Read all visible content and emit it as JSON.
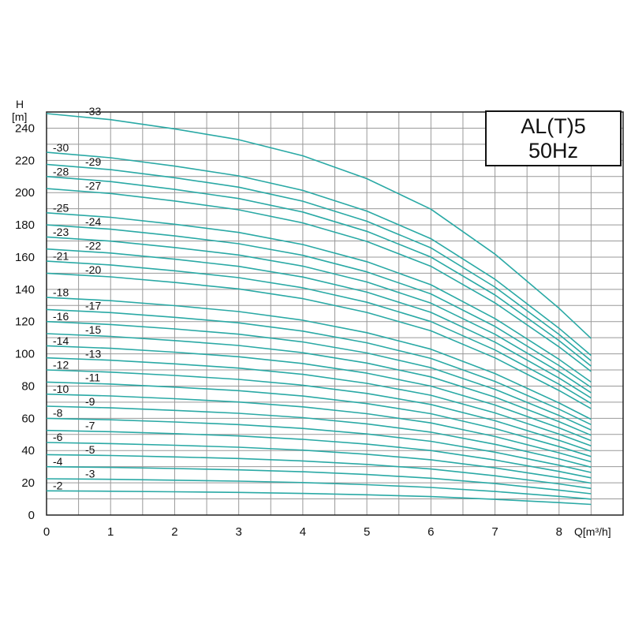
{
  "chart_data": {
    "type": "line",
    "title": [
      "AL(T)5",
      "50Hz"
    ],
    "xlabel": "Q[m³/h]",
    "ylabel": [
      "H",
      "[m]"
    ],
    "xlim": [
      0,
      9
    ],
    "ylim": [
      0,
      250
    ],
    "x_major_ticks": [
      0,
      1,
      2,
      3,
      4,
      5,
      6,
      7,
      8
    ],
    "y_major_ticks": [
      0,
      20,
      40,
      60,
      80,
      100,
      120,
      140,
      160,
      180,
      200,
      220,
      240
    ],
    "grid": true,
    "line_color": "#2aa9a5",
    "curve_points_q": [
      0,
      1,
      2,
      3,
      4,
      5,
      6,
      7,
      8,
      8.5
    ],
    "curve_shape_ratio": [
      1.0,
      0.985,
      0.962,
      0.935,
      0.895,
      0.838,
      0.762,
      0.65,
      0.515,
      0.44
    ],
    "series": [
      {
        "name": "-2",
        "h0": 15
      },
      {
        "name": "-3",
        "h0": 22.5
      },
      {
        "name": "-4",
        "h0": 30
      },
      {
        "name": "-5",
        "h0": 37.5
      },
      {
        "name": "-6",
        "h0": 45
      },
      {
        "name": "-7",
        "h0": 52.5
      },
      {
        "name": "-8",
        "h0": 60
      },
      {
        "name": "-9",
        "h0": 67.5
      },
      {
        "name": "-10",
        "h0": 75
      },
      {
        "name": "-11",
        "h0": 82.5
      },
      {
        "name": "-12",
        "h0": 90
      },
      {
        "name": "-13",
        "h0": 97.5
      },
      {
        "name": "-14",
        "h0": 105
      },
      {
        "name": "-15",
        "h0": 112.5
      },
      {
        "name": "-16",
        "h0": 120
      },
      {
        "name": "-17",
        "h0": 127.5
      },
      {
        "name": "-18",
        "h0": 135
      },
      {
        "name": "-20",
        "h0": 150
      },
      {
        "name": "-21",
        "h0": 157.5
      },
      {
        "name": "-22",
        "h0": 165
      },
      {
        "name": "-23",
        "h0": 172.5
      },
      {
        "name": "-24",
        "h0": 180
      },
      {
        "name": "-25",
        "h0": 187.5
      },
      {
        "name": "-27",
        "h0": 202.5
      },
      {
        "name": "-28",
        "h0": 210
      },
      {
        "name": "-29",
        "h0": 217.5
      },
      {
        "name": "-30",
        "h0": 225
      },
      {
        "name": "-33",
        "h0": 249
      }
    ]
  }
}
